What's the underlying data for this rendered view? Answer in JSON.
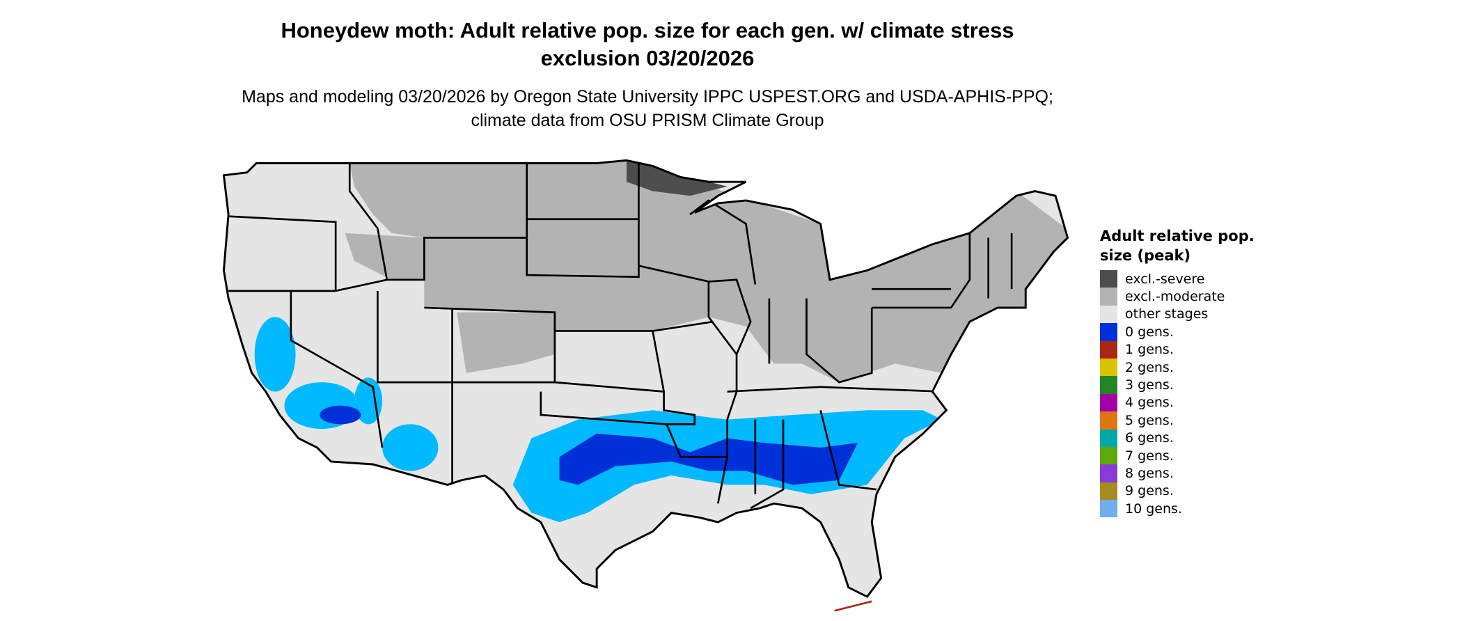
{
  "title": "Honeydew moth: Adult relative pop. size for each gen. w/ climate stress exclusion 03/20/2026",
  "subtitle": "Maps and modeling 03/20/2026 by Oregon State University IPPC USPEST.ORG and USDA-APHIS-PPQ; climate data from OSU PRISM Climate Group",
  "legend": {
    "title": "Adult relative pop. size (peak)",
    "items": [
      {
        "label": "excl.-severe",
        "color": "#4d4d4d"
      },
      {
        "label": "excl.-moderate",
        "color": "#b3b3b3"
      },
      {
        "label": "other stages",
        "color": "#e5e5e5"
      },
      {
        "label": "0 gens.",
        "color": "#0030d8"
      },
      {
        "label": "1 gens.",
        "color": "#a82815"
      },
      {
        "label": "2 gens.",
        "color": "#d9c200"
      },
      {
        "label": "3 gens.",
        "color": "#238526"
      },
      {
        "label": "4 gens.",
        "color": "#a200a6"
      },
      {
        "label": "5 gens.",
        "color": "#dd7613"
      },
      {
        "label": "6 gens.",
        "color": "#00a8a8"
      },
      {
        "label": "7 gens.",
        "color": "#5fa80d"
      },
      {
        "label": "8 gens.",
        "color": "#8a3ad6"
      },
      {
        "label": "9 gens.",
        "color": "#a58c20"
      },
      {
        "label": "10 gens.",
        "color": "#72adee"
      }
    ]
  },
  "map_colors": {
    "light_blue": "#00b9ff",
    "outline": "#000000"
  }
}
